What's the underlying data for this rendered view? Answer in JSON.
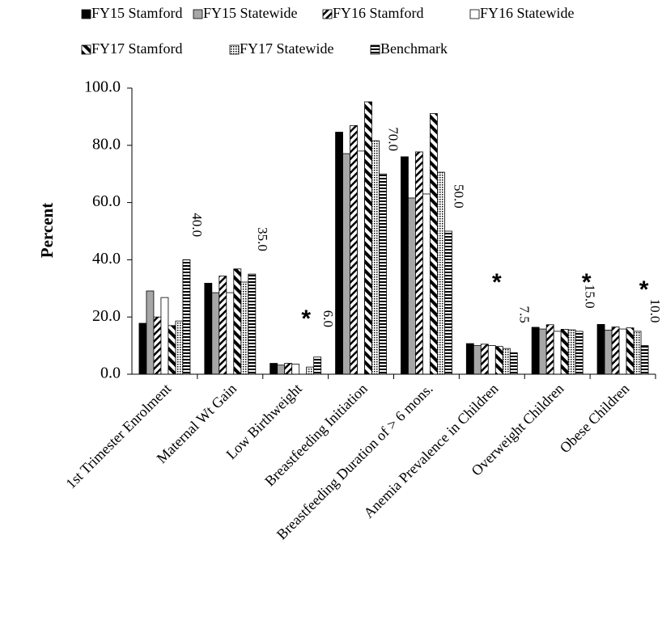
{
  "chart_data": {
    "type": "bar",
    "ylabel": "Percent",
    "categories": [
      "1st Trimester Enrolment",
      "Maternal Wt Gain",
      "Low Birthweight",
      "Breastfeeding Initiation",
      "Breastfeeding  Duration of > 6 mons.",
      "Anemia Prevalence in Children",
      "Overweight Children",
      "Obese Children"
    ],
    "series": [
      {
        "name": "FY15 Stamford",
        "color": "#000000",
        "pattern": "solid",
        "values": [
          17.8,
          31.8,
          3.8,
          84.6,
          76.0,
          10.7,
          16.4,
          17.4
        ]
      },
      {
        "name": "FY15 Statewide",
        "color": "#a6a6a6",
        "pattern": "solid",
        "values": [
          29.1,
          28.5,
          3.2,
          77.1,
          61.6,
          10.0,
          15.8,
          15.4
        ]
      },
      {
        "name": "FY16 Stamford",
        "color": "#000000",
        "pattern": "diagonal",
        "values": [
          20.0,
          34.3,
          3.8,
          86.9,
          77.7,
          10.5,
          17.3,
          16.5
        ]
      },
      {
        "name": "FY16 Statewide",
        "color": "#ffffff",
        "pattern": "solid",
        "values": [
          26.8,
          28.5,
          3.5,
          78.0,
          63.0,
          10.0,
          15.0,
          15.8
        ]
      },
      {
        "name": "FY17 Stamford",
        "color": "#000000",
        "pattern": "wide-diagonal",
        "values": [
          17.0,
          36.8,
          null,
          95.2,
          91.1,
          9.7,
          15.7,
          16.2
        ]
      },
      {
        "name": "FY17 Statewide",
        "color": "#000000",
        "pattern": "dotted",
        "values": [
          18.6,
          32.2,
          2.5,
          81.6,
          70.6,
          9.0,
          15.5,
          15.0
        ]
      },
      {
        "name": "Benchmark",
        "color": "#000000",
        "pattern": "horizontal",
        "values": [
          40,
          35,
          6,
          70,
          50,
          7.5,
          15,
          10
        ],
        "value_labels": [
          "40.0",
          "35.0",
          "6.0",
          "70.0",
          "50.0",
          "7.5",
          "15.0",
          "10.0"
        ]
      }
    ],
    "annotations": [
      {
        "text": "*",
        "category": 2
      },
      {
        "text": "*",
        "category": 5
      },
      {
        "text": "*",
        "category": 6
      },
      {
        "text": "*",
        "category": 7
      }
    ],
    "ylim": [
      0,
      100
    ],
    "yticks": [
      {
        "value": 0,
        "label": "0.0"
      },
      {
        "value": 20,
        "label": "20.0"
      },
      {
        "value": 40,
        "label": "40.0"
      },
      {
        "value": 60,
        "label": "60.0"
      },
      {
        "value": 80,
        "label": "80.0"
      },
      {
        "value": 100,
        "label": "100.0"
      }
    ],
    "legend": "top"
  }
}
